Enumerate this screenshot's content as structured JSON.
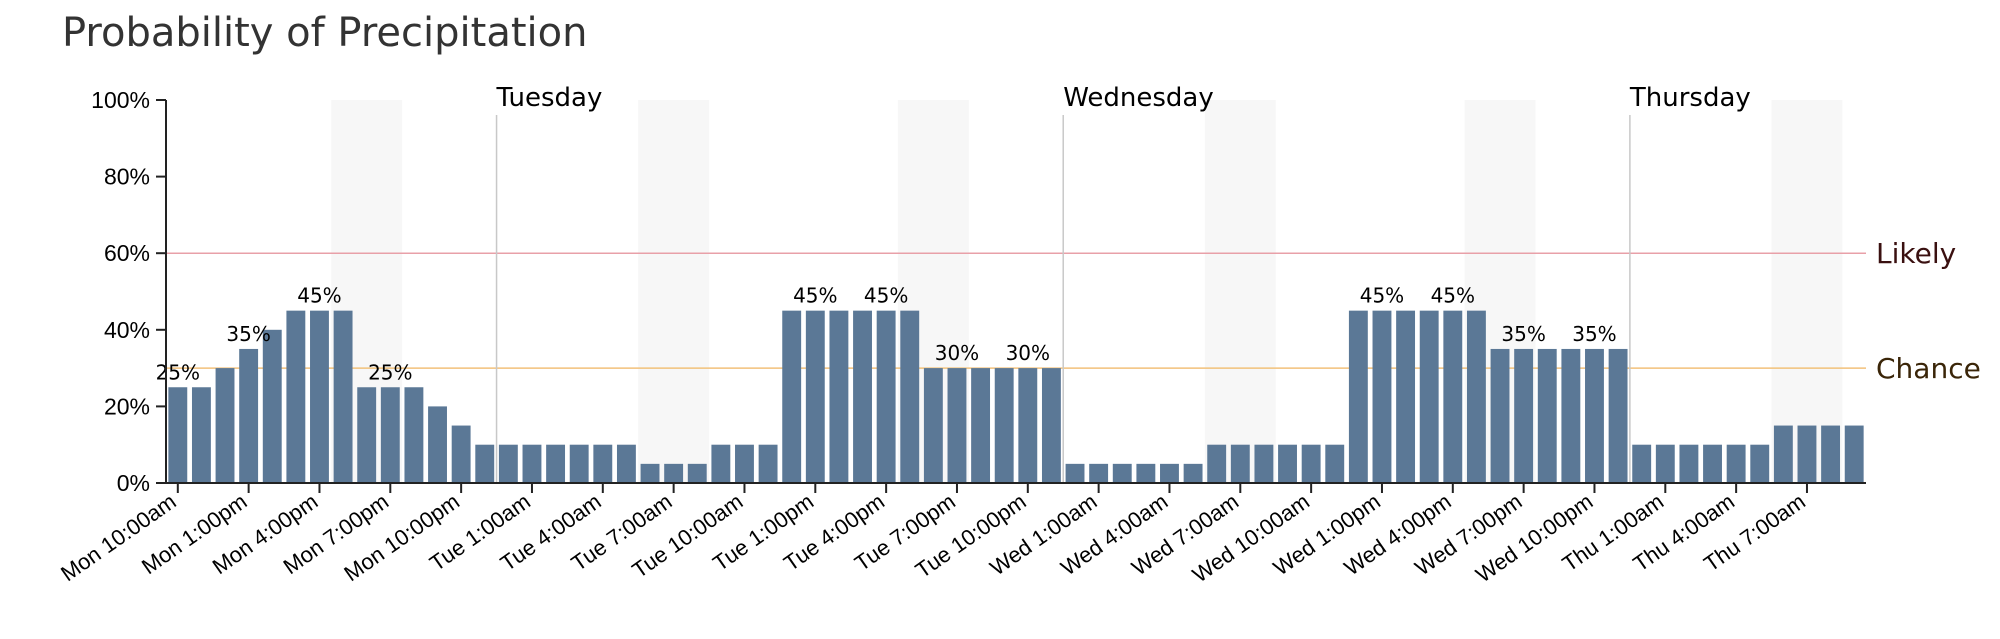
{
  "chart_data": {
    "type": "bar",
    "title": "Probability of Precipitation",
    "ylim": [
      0,
      100
    ],
    "y_ticks": [
      "0%",
      "20%",
      "40%",
      "60%",
      "80%",
      "100%"
    ],
    "y_tick_values": [
      0,
      20,
      40,
      60,
      80,
      100
    ],
    "start_hour": "Mon 10:00am",
    "values": [
      25,
      25,
      30,
      35,
      40,
      45,
      45,
      45,
      25,
      25,
      25,
      20,
      15,
      10,
      10,
      10,
      10,
      10,
      10,
      10,
      5,
      5,
      5,
      10,
      10,
      10,
      45,
      45,
      45,
      45,
      45,
      45,
      30,
      30,
      30,
      30,
      30,
      30,
      5,
      5,
      5,
      5,
      5,
      5,
      10,
      10,
      10,
      10,
      10,
      10,
      45,
      45,
      45,
      45,
      45,
      45,
      35,
      35,
      35,
      35,
      35,
      35,
      10,
      10,
      10,
      10,
      10,
      10,
      15,
      15,
      15,
      15
    ],
    "x_tick_labels": [
      "Mon 10:00am",
      "Mon 1:00pm",
      "Mon 4:00pm",
      "Mon 7:00pm",
      "Mon 10:00pm",
      "Tue 1:00am",
      "Tue 4:00am",
      "Tue 7:00am",
      "Tue 10:00am",
      "Tue 1:00pm",
      "Tue 4:00pm",
      "Tue 7:00pm",
      "Tue 10:00pm",
      "Wed 1:00am",
      "Wed 4:00am",
      "Wed 7:00am",
      "Wed 10:00am",
      "Wed 1:00pm",
      "Wed 4:00pm",
      "Wed 7:00pm",
      "Wed 10:00pm",
      "Thu 1:00am",
      "Thu 4:00am",
      "Thu 7:00am"
    ],
    "x_tick_every": 3,
    "data_labels": [
      {
        "index": 0,
        "text": "25%"
      },
      {
        "index": 3,
        "text": "35%"
      },
      {
        "index": 6,
        "text": "45%"
      },
      {
        "index": 9,
        "text": "25%"
      },
      {
        "index": 27,
        "text": "45%"
      },
      {
        "index": 30,
        "text": "45%"
      },
      {
        "index": 33,
        "text": "30%"
      },
      {
        "index": 36,
        "text": "30%"
      },
      {
        "index": 51,
        "text": "45%"
      },
      {
        "index": 54,
        "text": "45%"
      },
      {
        "index": 57,
        "text": "35%"
      },
      {
        "index": 60,
        "text": "35%"
      }
    ],
    "day_markers": [
      {
        "index": 14,
        "label": "Tuesday"
      },
      {
        "index": 38,
        "label": "Wednesday"
      },
      {
        "index": 62,
        "label": "Thursday"
      }
    ],
    "shaded_bands": [
      [
        7,
        10
      ],
      [
        20,
        23
      ],
      [
        31,
        34
      ],
      [
        44,
        47
      ],
      [
        55,
        58
      ],
      [
        68,
        71
      ]
    ],
    "thresholds": [
      {
        "value": 60,
        "label": "Likely",
        "line_color": "#e8a0a8",
        "text_color": "#3a1010"
      },
      {
        "value": 30,
        "label": "Chance",
        "line_color": "#f2c17a",
        "text_color": "#3a2508"
      }
    ],
    "colors": {
      "bar": "#5b7896",
      "shade": "#f7f7f7",
      "axis": "#222222",
      "day_line": "#c8c8c8"
    }
  }
}
